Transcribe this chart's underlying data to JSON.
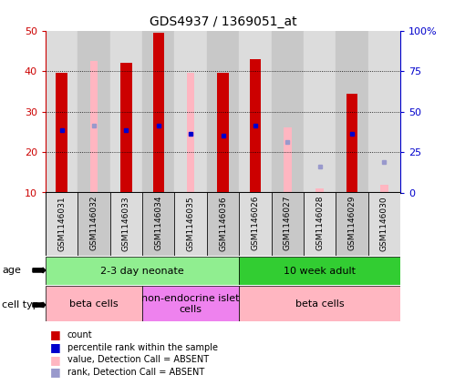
{
  "title": "GDS4937 / 1369051_at",
  "samples": [
    "GSM1146031",
    "GSM1146032",
    "GSM1146033",
    "GSM1146034",
    "GSM1146035",
    "GSM1146036",
    "GSM1146026",
    "GSM1146027",
    "GSM1146028",
    "GSM1146029",
    "GSM1146030"
  ],
  "red_bar_heights": [
    39.5,
    0,
    42,
    49.5,
    0,
    39.5,
    43,
    0,
    0,
    34.5,
    0
  ],
  "pink_bar_heights": [
    0,
    42.5,
    0,
    0,
    39.5,
    0,
    0,
    26,
    11,
    0,
    12
  ],
  "blue_dot_y": [
    25.5,
    0,
    25.5,
    26.5,
    24.5,
    24,
    26.5,
    0,
    0,
    24.5,
    0
  ],
  "light_blue_dot_y": [
    0,
    26.5,
    0,
    0,
    0,
    0,
    0,
    22.5,
    16.5,
    0,
    17.5
  ],
  "ylim_left": [
    10,
    50
  ],
  "ylim_right": [
    0,
    100
  ],
  "yticks_left": [
    10,
    20,
    30,
    40,
    50
  ],
  "yticks_right": [
    0,
    25,
    50,
    75,
    100
  ],
  "ytick_labels_right": [
    "0",
    "25",
    "50",
    "75",
    "100%"
  ],
  "age_groups": [
    {
      "label": "2-3 day neonate",
      "start": 0,
      "end": 6,
      "color": "#90EE90"
    },
    {
      "label": "10 week adult",
      "start": 6,
      "end": 11,
      "color": "#32CD32"
    }
  ],
  "cell_type_groups": [
    {
      "label": "beta cells",
      "start": 0,
      "end": 3,
      "color": "#FFB6C1"
    },
    {
      "label": "non-endocrine islet\ncells",
      "start": 3,
      "end": 6,
      "color": "#EE82EE"
    },
    {
      "label": "beta cells",
      "start": 6,
      "end": 11,
      "color": "#FFB6C1"
    }
  ],
  "red_color": "#CC0000",
  "pink_color": "#FFB6C1",
  "blue_color": "#0000CC",
  "light_blue_color": "#9999CC",
  "bar_width": 0.35,
  "bg_color": "#FFFFFF",
  "left_axis_color": "#CC0000",
  "right_axis_color": "#0000CC",
  "col_colors": [
    "#DCDCDC",
    "#C8C8C8"
  ],
  "legend_colors": [
    "#CC0000",
    "#0000CC",
    "#FFB6C1",
    "#9999CC"
  ],
  "legend_labels": [
    "count",
    "percentile rank within the sample",
    "value, Detection Call = ABSENT",
    "rank, Detection Call = ABSENT"
  ]
}
